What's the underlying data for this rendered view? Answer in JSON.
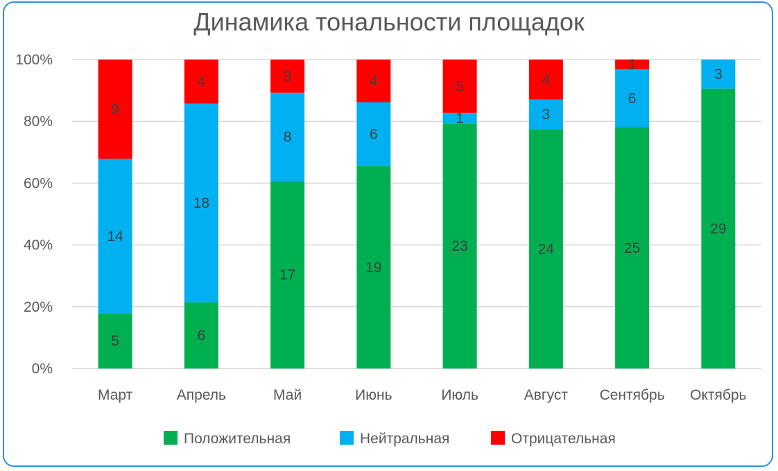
{
  "chart_data": {
    "type": "bar",
    "stacked": "percent",
    "title": "Динамика тональности площадок",
    "xlabel": "",
    "ylabel": "",
    "ylim": [
      0,
      100
    ],
    "y_ticks": [
      "0%",
      "20%",
      "40%",
      "60%",
      "80%",
      "100%"
    ],
    "y_tick_values": [
      0,
      20,
      40,
      60,
      80,
      100
    ],
    "grid": true,
    "legend_position": "bottom",
    "categories": [
      "Март",
      "Апрель",
      "Май",
      "Июнь",
      "Июль",
      "Август",
      "Сентябрь",
      "Октябрь"
    ],
    "series": [
      {
        "name": "Положительная",
        "color": "#00b050",
        "values": [
          5,
          6,
          17,
          19,
          23,
          24,
          25,
          29
        ]
      },
      {
        "name": "Нейтральная",
        "color": "#00b0f0",
        "values": [
          14,
          18,
          8,
          6,
          1,
          3,
          6,
          3
        ]
      },
      {
        "name": "Отрицательная",
        "color": "#ff0000",
        "values": [
          9,
          4,
          3,
          4,
          5,
          4,
          1,
          0
        ]
      }
    ]
  }
}
